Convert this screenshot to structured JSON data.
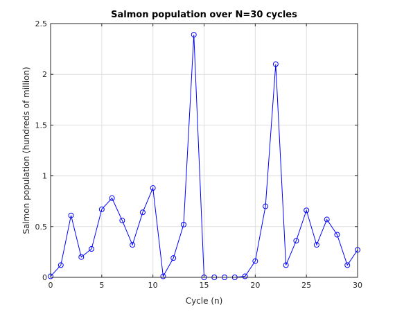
{
  "chart_data": {
    "type": "line",
    "title": "Salmon population over N=30 cycles",
    "xlabel": "Cycle (n)",
    "ylabel": "Salmon population (hundreds of million)",
    "xlim": [
      0,
      30
    ],
    "ylim": [
      0,
      2.5
    ],
    "xticks": [
      0,
      5,
      10,
      15,
      20,
      25,
      30
    ],
    "xtick_labels": [
      "0",
      "5",
      "10",
      "15",
      "20",
      "25",
      "30"
    ],
    "yticks": [
      0,
      0.5,
      1,
      1.5,
      2,
      2.5
    ],
    "ytick_labels": [
      "0",
      "0.5",
      "1",
      "1.5",
      "2",
      "2.5"
    ],
    "grid": true,
    "marker": "circle",
    "line_color": "#0000ff",
    "series": [
      {
        "x": [
          0,
          1,
          2,
          3,
          4,
          5,
          6,
          7,
          8,
          9,
          10,
          11,
          12,
          13,
          14,
          15,
          16,
          17,
          18,
          19,
          20,
          21,
          22,
          23,
          24,
          25,
          26,
          27,
          28,
          29,
          30
        ],
        "values": [
          0.01,
          0.12,
          0.61,
          0.2,
          0.28,
          0.67,
          0.78,
          0.56,
          0.32,
          0.64,
          0.88,
          0.01,
          0.19,
          0.52,
          2.39,
          0.0,
          0.0,
          0.0,
          0.0,
          0.01,
          0.16,
          0.7,
          2.1,
          0.12,
          0.36,
          0.66,
          0.32,
          0.57,
          0.42,
          0.12,
          0.27
        ]
      }
    ]
  }
}
